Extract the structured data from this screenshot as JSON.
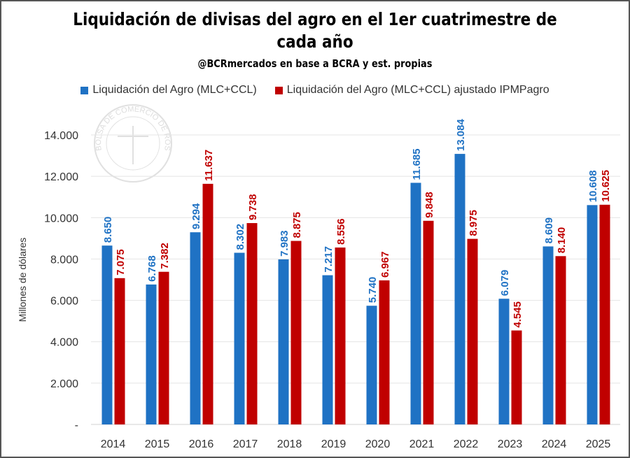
{
  "chart_data": {
    "type": "bar",
    "title_line1": "Liquidación de divisas del agro en el 1er cuatrimestre de",
    "title_line2": "cada año",
    "subtitle": "@BCRmercados en base a BCRA y est. propias",
    "ylabel": "Millones de dólares",
    "xlabel": "",
    "ylim": [
      0,
      14000
    ],
    "yticks": [
      0,
      2000,
      4000,
      6000,
      8000,
      10000,
      12000,
      14000
    ],
    "ytick_labels": [
      "-",
      "2.000",
      "4.000",
      "6.000",
      "8.000",
      "10.000",
      "12.000",
      "14.000"
    ],
    "grid": true,
    "legend_position": "top",
    "categories": [
      "2014",
      "2015",
      "2016",
      "2017",
      "2018",
      "2019",
      "2020",
      "2021",
      "2022",
      "2023",
      "2024",
      "2025"
    ],
    "series": [
      {
        "name": "Liquidación del Agro (MLC+CCL)",
        "color": "#1f72c4",
        "values": [
          8650,
          6768,
          9294,
          8302,
          7983,
          7217,
          5740,
          11685,
          13084,
          6079,
          8609,
          10608
        ],
        "labels": [
          "8.650",
          "6.768",
          "9.294",
          "8.302",
          "7.983",
          "7.217",
          "5.740",
          "11.685",
          "13.084",
          "6.079",
          "8.609",
          "10.608"
        ]
      },
      {
        "name": "Liquidación del Agro (MLC+CCL) ajustado IPMPagro",
        "color": "#c00000",
        "values": [
          7075,
          7382,
          11637,
          9738,
          8875,
          8556,
          6967,
          9848,
          8975,
          4545,
          8140,
          10625
        ],
        "labels": [
          "7.075",
          "7.382",
          "11.637",
          "9.738",
          "8.875",
          "8.556",
          "6.967",
          "9.848",
          "8.975",
          "4.545",
          "8.140",
          "10.625"
        ]
      }
    ],
    "watermark": "BOLSA DE COMERCIO DE ROSARIO"
  }
}
